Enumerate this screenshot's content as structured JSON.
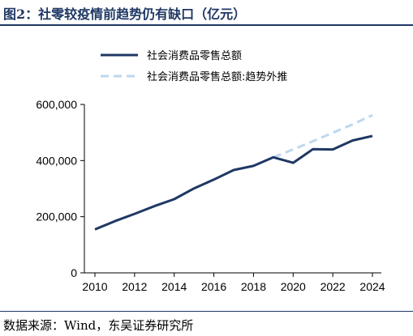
{
  "header": {
    "title": "图2：社零较疫情前趋势仍有缺口（亿元）"
  },
  "footer": {
    "source": "数据来源：Wind，东吴证券研究所"
  },
  "colors": {
    "actual": "#1f3864",
    "trend": "#bdd7ee",
    "title": "#1f3864"
  },
  "chart_data": {
    "type": "line",
    "title": "图2：社零较疫情前趋势仍有缺口（亿元）",
    "xlabel": "",
    "ylabel": "",
    "xlim": [
      2010,
      2024
    ],
    "ylim": [
      0,
      600000
    ],
    "x_ticks": [
      "2010",
      "2012",
      "2014",
      "2016",
      "2018",
      "2020",
      "2022",
      "2024"
    ],
    "y_ticks": [
      "0",
      "200,000",
      "400,000",
      "600,000"
    ],
    "legend_position": "top",
    "grid": false,
    "series": [
      {
        "name": "社会消费品零售总额",
        "style": "solid",
        "color": "#1f3864",
        "points": [
          [
            2010.0,
            154554
          ],
          [
            2011.0,
            183919
          ],
          [
            2012.0,
            210307
          ],
          [
            2013.0,
            237810
          ],
          [
            2014.0,
            262394
          ],
          [
            2015.0,
            300931
          ],
          [
            2016.0,
            332316
          ],
          [
            2017.0,
            366262
          ],
          [
            2018.0,
            380987
          ],
          [
            2019.0,
            411649
          ],
          [
            2020.0,
            391981
          ],
          [
            2021.0,
            440823
          ],
          [
            2022.0,
            439733
          ],
          [
            2023.0,
            471495
          ],
          [
            2024.0,
            487895
          ]
        ]
      },
      {
        "name": "社会消费品零售总额:趋势外推",
        "style": "dashed",
        "color": "#bdd7ee",
        "points": [
          [
            2019.0,
            411649
          ],
          [
            2020.0,
            440000
          ],
          [
            2021.0,
            469000
          ],
          [
            2022.0,
            499000
          ],
          [
            2023.0,
            529000
          ],
          [
            2024.0,
            562000
          ]
        ]
      }
    ]
  }
}
